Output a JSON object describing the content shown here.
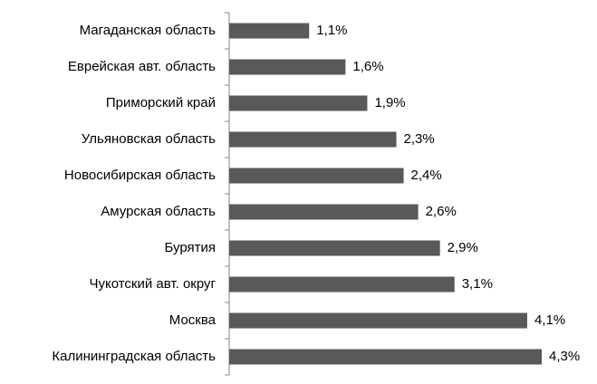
{
  "chart_data": {
    "type": "bar",
    "orientation": "horizontal",
    "categories": [
      "Магаданская область",
      "Еврейская авт. область",
      "Приморский край",
      "Ульяновская область",
      "Новосибирская область",
      "Амурская область",
      "Бурятия",
      "Чукотский авт. округ",
      "Москва",
      "Калининградская область"
    ],
    "values": [
      1.1,
      1.6,
      1.9,
      2.3,
      2.4,
      2.6,
      2.9,
      3.1,
      4.1,
      4.3
    ],
    "value_labels": [
      "1,1%",
      "1,6%",
      "1,9%",
      "2,3%",
      "2,4%",
      "2,6%",
      "2,9%",
      "3,1%",
      "4,1%",
      "4,3%"
    ],
    "color": "#595959"
  }
}
